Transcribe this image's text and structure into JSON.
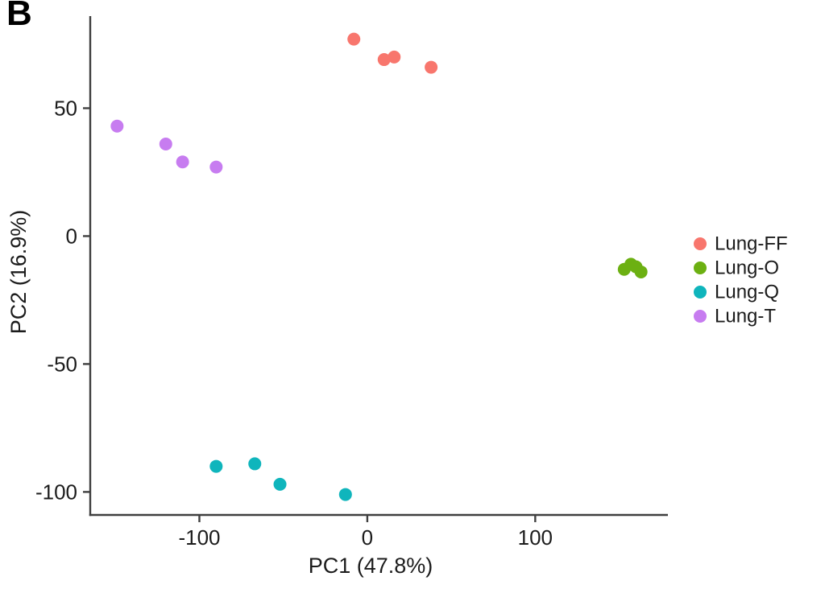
{
  "panel_label": "B",
  "chart_data": {
    "type": "scatter",
    "title": "",
    "xlabel": "PC1 (47.8%)",
    "ylabel": "PC2 (16.9%)",
    "xlim": [
      -165,
      179
    ],
    "ylim": [
      -109,
      86
    ],
    "x_ticks": [
      -100,
      0,
      100
    ],
    "y_ticks": [
      50,
      0,
      -50,
      -100
    ],
    "grid": false,
    "legend_position": "right-center",
    "axis_color": "#3f3f3f",
    "text_color": "#1c1c1c",
    "point_radius": 8,
    "series": [
      {
        "name": "Lung-FF",
        "color": "#F8766D",
        "points": [
          [
            -8,
            77
          ],
          [
            10,
            69
          ],
          [
            16,
            70
          ],
          [
            38,
            66
          ]
        ]
      },
      {
        "name": "Lung-O",
        "color": "#6CB012",
        "points": [
          [
            153,
            -13
          ],
          [
            157,
            -11
          ],
          [
            160,
            -12
          ],
          [
            163,
            -14
          ]
        ]
      },
      {
        "name": "Lung-Q",
        "color": "#0FB5BC",
        "points": [
          [
            -90,
            -90
          ],
          [
            -67,
            -89
          ],
          [
            -52,
            -97
          ],
          [
            -13,
            -101
          ]
        ]
      },
      {
        "name": "Lung-T",
        "color": "#C77CF0",
        "points": [
          [
            -149,
            43
          ],
          [
            -120,
            36
          ],
          [
            -110,
            29
          ],
          [
            -90,
            27
          ]
        ]
      }
    ]
  }
}
